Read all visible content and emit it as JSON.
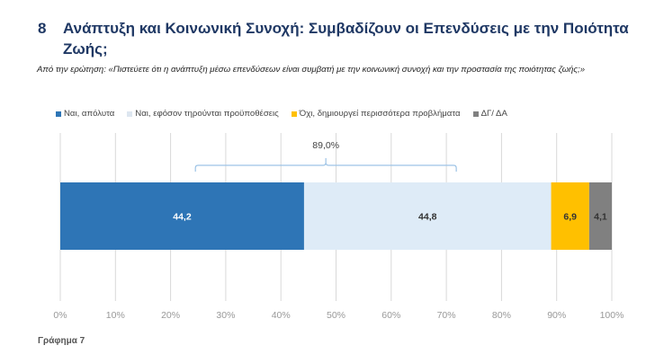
{
  "header": {
    "number": "8",
    "title": "Ανάπτυξη και Κοινωνική Συνοχή: Συμβαδίζουν οι Επενδύσεις με την Ποιότητα Ζωής;"
  },
  "subtitle": "Από την ερώτηση: «Πιστεύετε ότι η ανάπτυξη μέσω επενδύσεων είναι συμβατή με την κοινωνική συνοχή και την προστασία της ποιότητας ζωής;»",
  "figure_caption": "Γράφημα 7",
  "chart_data": {
    "type": "bar",
    "orientation": "horizontal-stacked-100",
    "categories": [
      ""
    ],
    "series": [
      {
        "name": "Ναι, απόλυτα",
        "values": [
          44.2
        ],
        "label": "44,2",
        "color": "#2e75b6",
        "label_color": "#ffffff"
      },
      {
        "name": "Ναι, εφόσον τηρούνται προϋποθέσεις",
        "values": [
          44.8
        ],
        "label": "44,8",
        "color": "#deebf7",
        "label_color": "#333333"
      },
      {
        "name": "Όχι, δημιουργεί περισσότερα προβλήματα",
        "values": [
          6.9
        ],
        "label": "6,9",
        "color": "#ffc000",
        "label_color": "#333333"
      },
      {
        "name": "ΔΓ/ ΔΑ",
        "values": [
          4.1
        ],
        "label": "4,1",
        "color": "#808080",
        "label_color": "#333333"
      }
    ],
    "annotation": {
      "text": "89,0%",
      "from": 24.5,
      "to": 71.8
    },
    "xlim": [
      0,
      100
    ],
    "xticks": [
      "0%",
      "10%",
      "20%",
      "30%",
      "40%",
      "50%",
      "60%",
      "70%",
      "80%",
      "90%",
      "100%"
    ],
    "grid": true,
    "legend_position": "top"
  }
}
